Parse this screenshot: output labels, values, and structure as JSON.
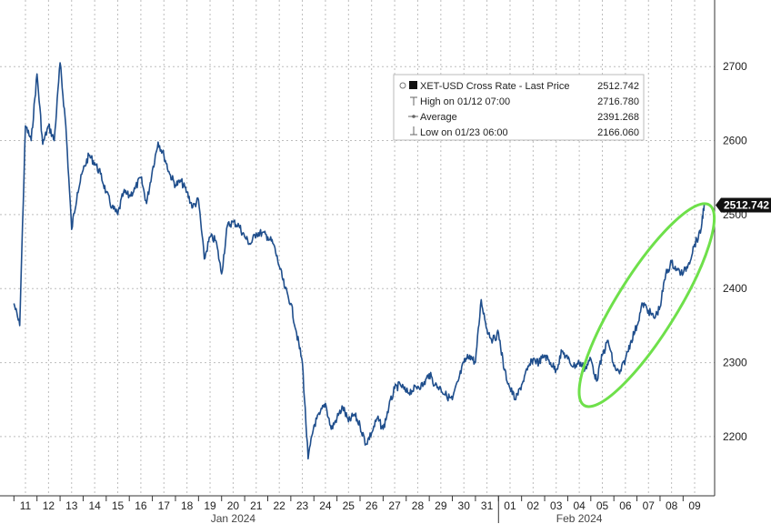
{
  "chart_data": {
    "type": "line",
    "series_name": "XET-USD Cross Rate - Last Price",
    "ylim": [
      2120,
      2790
    ],
    "y_ticks": [
      2200,
      2300,
      2400,
      2500,
      2600,
      2700
    ],
    "y_tick_labels": [
      "2200",
      "2300",
      "2400",
      "2500",
      "2600",
      "2700"
    ],
    "x_ticks": [
      "11",
      "12",
      "13",
      "14",
      "15",
      "16",
      "17",
      "18",
      "19",
      "20",
      "21",
      "22",
      "23",
      "24",
      "25",
      "26",
      "27",
      "28",
      "29",
      "30",
      "31",
      "01",
      "02",
      "03",
      "04",
      "05",
      "06",
      "07",
      "08",
      "09"
    ],
    "month_labels": [
      "Jan 2024",
      "Feb 2024"
    ],
    "legend": {
      "position": "top-right",
      "rows": [
        {
          "label": "XET-USD Cross Rate - Last Price",
          "value": "2512.742"
        },
        {
          "label": "High on 01/12 07:00",
          "value": "2716.780"
        },
        {
          "label": "Average",
          "value": "2391.268"
        },
        {
          "label": "Low on 01/23 06:00",
          "value": "2166.060"
        }
      ]
    },
    "last_price_label": "2512.742",
    "annotation": "green ellipse highlighting the Feb 04–09 rally",
    "points": [
      [
        "01-10 12:00",
        2380
      ],
      [
        "01-10 18:00",
        2350
      ],
      [
        "01-11 00:00",
        2620
      ],
      [
        "01-11 06:00",
        2600
      ],
      [
        "01-11 12:00",
        2690
      ],
      [
        "01-11 18:00",
        2595
      ],
      [
        "01-12 00:00",
        2620
      ],
      [
        "01-12 06:00",
        2600
      ],
      [
        "01-12 12:00",
        2705
      ],
      [
        "01-12 18:00",
        2620
      ],
      [
        "01-13 00:00",
        2480
      ],
      [
        "01-13 06:00",
        2530
      ],
      [
        "01-13 12:00",
        2560
      ],
      [
        "01-13 18:00",
        2580
      ],
      [
        "01-14 00:00",
        2570
      ],
      [
        "01-14 06:00",
        2555
      ],
      [
        "01-14 12:00",
        2530
      ],
      [
        "01-14 18:00",
        2510
      ],
      [
        "01-15 00:00",
        2500
      ],
      [
        "01-15 06:00",
        2530
      ],
      [
        "01-15 12:00",
        2525
      ],
      [
        "01-15 18:00",
        2535
      ],
      [
        "01-16 00:00",
        2550
      ],
      [
        "01-16 06:00",
        2515
      ],
      [
        "01-16 12:00",
        2560
      ],
      [
        "01-16 18:00",
        2598
      ],
      [
        "01-17 00:00",
        2580
      ],
      [
        "01-17 06:00",
        2555
      ],
      [
        "01-17 12:00",
        2540
      ],
      [
        "01-17 18:00",
        2545
      ],
      [
        "01-18 00:00",
        2530
      ],
      [
        "01-18 06:00",
        2510
      ],
      [
        "01-18 12:00",
        2520
      ],
      [
        "01-18 18:00",
        2440
      ],
      [
        "01-19 00:00",
        2470
      ],
      [
        "01-19 06:00",
        2465
      ],
      [
        "01-19 12:00",
        2420
      ],
      [
        "01-19 18:00",
        2485
      ],
      [
        "01-20 00:00",
        2490
      ],
      [
        "01-20 06:00",
        2485
      ],
      [
        "01-20 12:00",
        2470
      ],
      [
        "01-20 18:00",
        2460
      ],
      [
        "01-21 00:00",
        2475
      ],
      [
        "01-21 06:00",
        2475
      ],
      [
        "01-21 12:00",
        2470
      ],
      [
        "01-21 18:00",
        2460
      ],
      [
        "01-22 00:00",
        2430
      ],
      [
        "01-22 06:00",
        2400
      ],
      [
        "01-22 12:00",
        2380
      ],
      [
        "01-22 18:00",
        2340
      ],
      [
        "01-23 00:00",
        2300
      ],
      [
        "01-23 06:00",
        2170
      ],
      [
        "01-23 12:00",
        2215
      ],
      [
        "01-23 18:00",
        2230
      ],
      [
        "01-24 00:00",
        2245
      ],
      [
        "01-24 06:00",
        2210
      ],
      [
        "01-24 12:00",
        2225
      ],
      [
        "01-24 18:00",
        2240
      ],
      [
        "01-25 00:00",
        2220
      ],
      [
        "01-25 06:00",
        2230
      ],
      [
        "01-25 12:00",
        2215
      ],
      [
        "01-25 18:00",
        2190
      ],
      [
        "01-26 00:00",
        2205
      ],
      [
        "01-26 06:00",
        2225
      ],
      [
        "01-26 12:00",
        2210
      ],
      [
        "01-26 18:00",
        2240
      ],
      [
        "01-27 00:00",
        2265
      ],
      [
        "01-27 06:00",
        2270
      ],
      [
        "01-27 12:00",
        2260
      ],
      [
        "01-27 18:00",
        2262
      ],
      [
        "01-28 00:00",
        2268
      ],
      [
        "01-28 06:00",
        2270
      ],
      [
        "01-28 12:00",
        2285
      ],
      [
        "01-28 18:00",
        2270
      ],
      [
        "01-29 00:00",
        2265
      ],
      [
        "01-29 06:00",
        2255
      ],
      [
        "01-29 12:00",
        2250
      ],
      [
        "01-29 18:00",
        2275
      ],
      [
        "01-30 00:00",
        2300
      ],
      [
        "01-30 06:00",
        2310
      ],
      [
        "01-30 12:00",
        2300
      ],
      [
        "01-30 18:00",
        2385
      ],
      [
        "01-31 00:00",
        2345
      ],
      [
        "01-31 06:00",
        2330
      ],
      [
        "01-31 12:00",
        2340
      ],
      [
        "01-31 18:00",
        2290
      ],
      [
        "02-01 00:00",
        2265
      ],
      [
        "02-01 06:00",
        2250
      ],
      [
        "02-01 12:00",
        2270
      ],
      [
        "02-01 18:00",
        2290
      ],
      [
        "02-02 00:00",
        2305
      ],
      [
        "02-02 06:00",
        2300
      ],
      [
        "02-02 12:00",
        2310
      ],
      [
        "02-02 18:00",
        2300
      ],
      [
        "02-03 00:00",
        2290
      ],
      [
        "02-03 06:00",
        2315
      ],
      [
        "02-03 12:00",
        2305
      ],
      [
        "02-03 18:00",
        2295
      ],
      [
        "02-04 00:00",
        2300
      ],
      [
        "02-04 06:00",
        2292
      ],
      [
        "02-04 12:00",
        2305
      ],
      [
        "02-04 18:00",
        2275
      ],
      [
        "02-05 00:00",
        2310
      ],
      [
        "02-05 06:00",
        2330
      ],
      [
        "02-05 12:00",
        2295
      ],
      [
        "02-05 18:00",
        2285
      ],
      [
        "02-06 00:00",
        2305
      ],
      [
        "02-06 06:00",
        2330
      ],
      [
        "02-06 12:00",
        2350
      ],
      [
        "02-06 18:00",
        2380
      ],
      [
        "02-07 00:00",
        2370
      ],
      [
        "02-07 06:00",
        2360
      ],
      [
        "02-07 12:00",
        2375
      ],
      [
        "02-07 18:00",
        2420
      ],
      [
        "02-08 00:00",
        2435
      ],
      [
        "02-08 06:00",
        2425
      ],
      [
        "02-08 12:00",
        2420
      ],
      [
        "02-08 18:00",
        2435
      ],
      [
        "02-09 00:00",
        2460
      ],
      [
        "02-09 06:00",
        2475
      ],
      [
        "02-09 10:00",
        2515
      ]
    ]
  }
}
